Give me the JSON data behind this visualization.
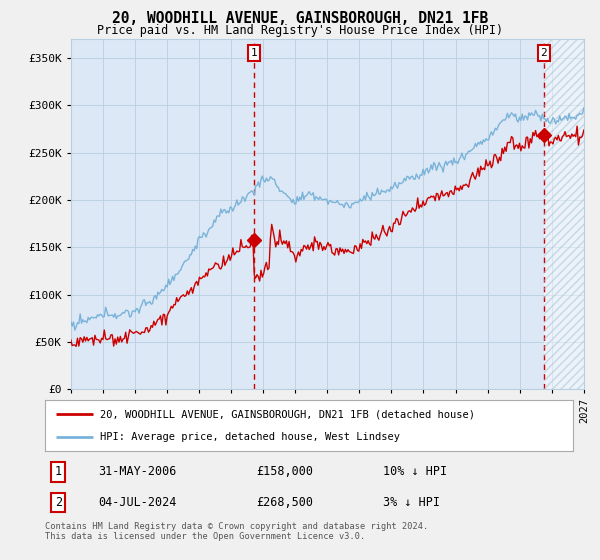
{
  "title": "20, WOODHILL AVENUE, GAINSBOROUGH, DN21 1FB",
  "subtitle": "Price paid vs. HM Land Registry's House Price Index (HPI)",
  "ylim": [
    0,
    370000
  ],
  "yticks": [
    0,
    50000,
    100000,
    150000,
    200000,
    250000,
    300000,
    350000
  ],
  "fig_bg": "#f0f0f0",
  "plot_bg": "#dce8f5",
  "grid_color": "#b8cfe0",
  "hpi_color": "#7ab3d9",
  "price_color": "#cc0000",
  "legend_label_price": "20, WOODHILL AVENUE, GAINSBOROUGH, DN21 1FB (detached house)",
  "legend_label_hpi": "HPI: Average price, detached house, West Lindsey",
  "annotation1_date": "31-MAY-2006",
  "annotation1_price": "£158,000",
  "annotation1_hpi": "10% ↓ HPI",
  "annotation2_date": "04-JUL-2024",
  "annotation2_price": "£268,500",
  "annotation2_hpi": "3% ↓ HPI",
  "footer": "Contains HM Land Registry data © Crown copyright and database right 2024.\nThis data is licensed under the Open Government Licence v3.0.",
  "sale1_x": 2006.42,
  "sale1_y": 158000,
  "sale2_x": 2024.51,
  "sale2_y": 268500,
  "xmin": 1995,
  "xmax": 2027
}
